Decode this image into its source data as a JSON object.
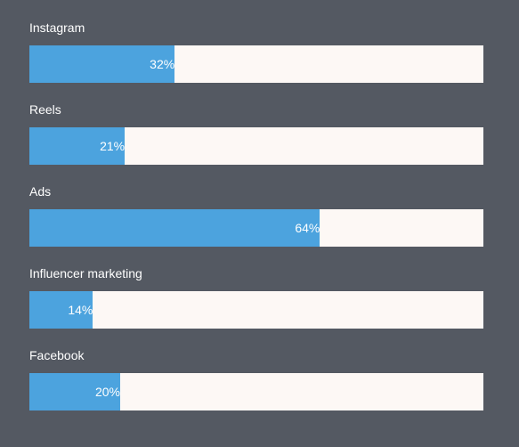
{
  "chart_data": {
    "type": "bar",
    "orientation": "horizontal",
    "categories": [
      "Instagram",
      "Reels",
      "Ads",
      "Influencer marketing",
      "Facebook"
    ],
    "values": [
      32,
      21,
      64,
      14,
      20
    ],
    "value_labels": [
      "32%",
      "21%",
      "64%",
      "14%",
      "20%"
    ],
    "xlim": [
      0,
      100
    ],
    "grid": false,
    "legend": "none"
  },
  "colors": {
    "background": "#545962",
    "bar_fill": "#4ca3de",
    "bar_track": "#fdf8f5",
    "text": "#ffffff"
  }
}
